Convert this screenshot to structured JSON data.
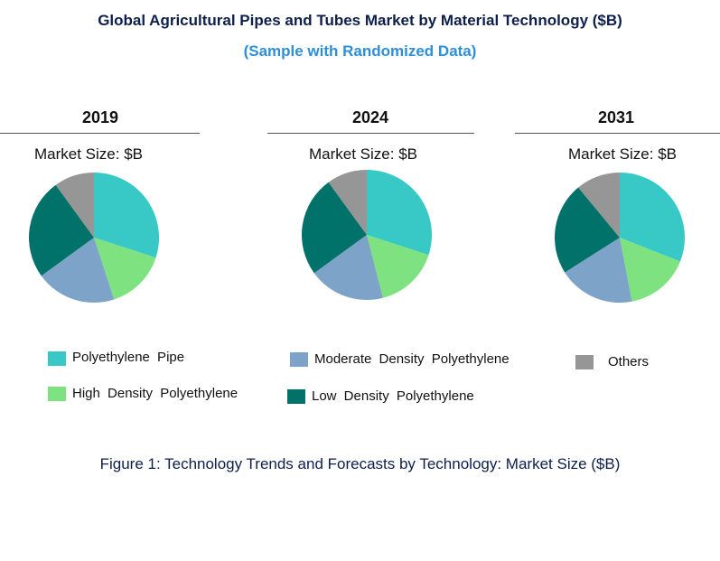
{
  "chart_data": {
    "type": "pie",
    "title": "Global Agricultural Pipes and Tubes Market by Material Technology ($B)",
    "subtitle": "(Sample with Randomized Data)",
    "caption": "Figure 1: Technology Trends and Forecasts by Technology: Market Size ($B)",
    "legend": [
      {
        "label": "Polyethylene  Pipe",
        "color": "#38c8c6"
      },
      {
        "label": "High  Density  Polyethylene",
        "color": "#7de27f"
      },
      {
        "label": "Moderate  Density  Polyethylene",
        "color": "#7ea3c8"
      },
      {
        "label": "Low  Density  Polyethylene",
        "color": "#00726a"
      },
      {
        "label": "Others",
        "color": "#969696"
      }
    ],
    "pies": [
      {
        "year": "2019",
        "subtitle": "Market Size: $B",
        "values": [
          30,
          15,
          20,
          25,
          10
        ]
      },
      {
        "year": "2024",
        "subtitle": "Market Size: $B",
        "values": [
          30,
          16,
          19,
          25,
          10
        ]
      },
      {
        "year": "2031",
        "subtitle": "Market Size: $B",
        "values": [
          31,
          16,
          19,
          23,
          11
        ]
      }
    ]
  }
}
